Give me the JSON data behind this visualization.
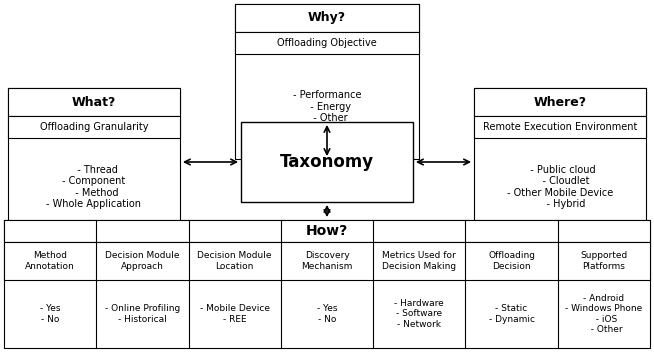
{
  "bg_color": "#ffffff",
  "border_color": "#000000",
  "why": {
    "header": "Why?",
    "subheader": "Offloading Objective",
    "items": "- Performance\n  - Energy\n  - Other"
  },
  "what": {
    "header": "What?",
    "subheader": "Offloading Granularity",
    "items": "  - Thread\n- Component\n  - Method\n- Whole Application"
  },
  "where": {
    "header": "Where?",
    "subheader": "Remote Execution Environment",
    "items": "  - Public cloud\n    - Cloudlet\n- Other Mobile Device\n    - Hybrid"
  },
  "taxonomy_label": "Taxonomy",
  "how_header": "How?",
  "how_columns": [
    "Method\nAnnotation",
    "Decision Module\nApproach",
    "Decision Module\nLocation",
    "Discovery\nMechanism",
    "Metrics Used for\nDecision Making",
    "Offloading\nDecision",
    "Supported\nPlatforms"
  ],
  "how_rows": [
    "- Yes\n- No",
    "- Online Profiling\n- Historical",
    "- Mobile Device\n- REE",
    "- Yes\n- No",
    "- Hardware\n- Software\n- Network",
    "- Static\n- Dynamic",
    "- Android\n- Windows Phone\n  - iOS\n  - Other"
  ]
}
